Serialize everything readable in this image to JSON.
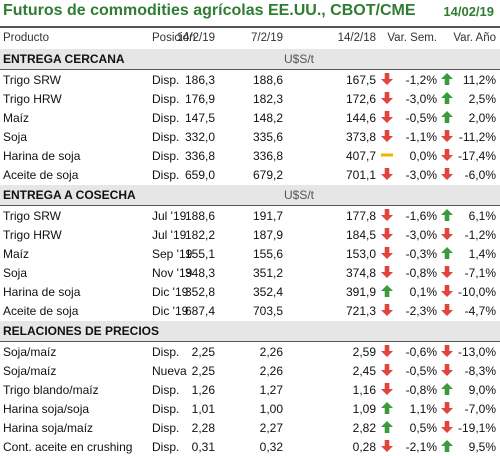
{
  "title": "Futuros de commodities agrícolas EE.UU., CBOT/CME",
  "date": "14/02/19",
  "headers": {
    "producto": "Producto",
    "posicion": "Posición",
    "d1": "14/2/19",
    "d2": "7/2/19",
    "d3": "14/2/18",
    "sem": "Var. Sem.",
    "ano": "Var. Año"
  },
  "colors": {
    "title": "#2e7d32",
    "up": "#3a9b3a",
    "down": "#e0443a",
    "flat": "#f0b400"
  },
  "sections": [
    {
      "name": "ENTREGA CERCANA",
      "unit": "U$S/t"
    },
    {
      "name": "ENTREGA A COSECHA",
      "unit": "U$S/t"
    },
    {
      "name": "RELACIONES DE PRECIOS",
      "unit": ""
    }
  ],
  "rows": [
    [
      {
        "p": "Trigo SRW",
        "pos": "Disp.",
        "v1": "186,3",
        "v2": "188,6",
        "v3": "167,5",
        "s_icon": "down-arrow-icon",
        "sem": "-1,2%",
        "a_icon": "up-arrow-icon",
        "ano": "11,2%"
      },
      {
        "p": "Trigo HRW",
        "pos": "Disp.",
        "v1": "176,9",
        "v2": "182,3",
        "v3": "172,6",
        "s_icon": "down-arrow-icon",
        "sem": "-3,0%",
        "a_icon": "up-arrow-icon",
        "ano": "2,5%"
      },
      {
        "p": "Maíz",
        "pos": "Disp.",
        "v1": "147,5",
        "v2": "148,2",
        "v3": "144,6",
        "s_icon": "down-arrow-icon",
        "sem": "-0,5%",
        "a_icon": "up-arrow-icon",
        "ano": "2,0%"
      },
      {
        "p": "Soja",
        "pos": "Disp.",
        "v1": "332,0",
        "v2": "335,6",
        "v3": "373,8",
        "s_icon": "down-arrow-icon",
        "sem": "-1,1%",
        "a_icon": "down-arrow-icon",
        "ano": "-11,2%"
      },
      {
        "p": "Harina de soja",
        "pos": "Disp.",
        "v1": "336,8",
        "v2": "336,8",
        "v3": "407,7",
        "s_icon": "flat-dash-icon",
        "sem": "0,0%",
        "a_icon": "down-arrow-icon",
        "ano": "-17,4%"
      },
      {
        "p": "Aceite de soja",
        "pos": "Disp.",
        "v1": "659,0",
        "v2": "679,2",
        "v3": "701,1",
        "s_icon": "down-arrow-icon",
        "sem": "-3,0%",
        "a_icon": "down-arrow-icon",
        "ano": "-6,0%"
      }
    ],
    [
      {
        "p": "Trigo SRW",
        "pos": "Jul '19",
        "v1": "188,6",
        "v2": "191,7",
        "v3": "177,8",
        "s_icon": "down-arrow-icon",
        "sem": "-1,6%",
        "a_icon": "up-arrow-icon",
        "ano": "6,1%"
      },
      {
        "p": "Trigo HRW",
        "pos": "Jul '19",
        "v1": "182,2",
        "v2": "187,9",
        "v3": "184,5",
        "s_icon": "down-arrow-icon",
        "sem": "-3,0%",
        "a_icon": "down-arrow-icon",
        "ano": "-1,2%"
      },
      {
        "p": "Maíz",
        "pos": "Sep '19",
        "v1": "155,1",
        "v2": "155,6",
        "v3": "153,0",
        "s_icon": "down-arrow-icon",
        "sem": "-0,3%",
        "a_icon": "up-arrow-icon",
        "ano": "1,4%"
      },
      {
        "p": "Soja",
        "pos": "Nov '19",
        "v1": "348,3",
        "v2": "351,2",
        "v3": "374,8",
        "s_icon": "down-arrow-icon",
        "sem": "-0,8%",
        "a_icon": "down-arrow-icon",
        "ano": "-7,1%"
      },
      {
        "p": "Harina de soja",
        "pos": "Dic '19",
        "v1": "352,8",
        "v2": "352,4",
        "v3": "391,9",
        "s_icon": "up-arrow-icon",
        "sem": "0,1%",
        "a_icon": "down-arrow-icon",
        "ano": "-10,0%"
      },
      {
        "p": "Aceite de soja",
        "pos": "Dic '19",
        "v1": "687,4",
        "v2": "703,5",
        "v3": "721,3",
        "s_icon": "down-arrow-icon",
        "sem": "-2,3%",
        "a_icon": "down-arrow-icon",
        "ano": "-4,7%"
      }
    ],
    [
      {
        "p": "Soja/maíz",
        "pos": "Disp.",
        "v1": "2,25",
        "v2": "2,26",
        "v3": "2,59",
        "s_icon": "down-arrow-icon",
        "sem": "-0,6%",
        "a_icon": "down-arrow-icon",
        "ano": "-13,0%"
      },
      {
        "p": "Soja/maíz",
        "pos": "Nueva",
        "v1": "2,25",
        "v2": "2,26",
        "v3": "2,45",
        "s_icon": "down-arrow-icon",
        "sem": "-0,5%",
        "a_icon": "down-arrow-icon",
        "ano": "-8,3%"
      },
      {
        "p": "Trigo blando/maíz",
        "pos": "Disp.",
        "v1": "1,26",
        "v2": "1,27",
        "v3": "1,16",
        "s_icon": "down-arrow-icon",
        "sem": "-0,8%",
        "a_icon": "up-arrow-icon",
        "ano": "9,0%"
      },
      {
        "p": "Harina soja/soja",
        "pos": "Disp.",
        "v1": "1,01",
        "v2": "1,00",
        "v3": "1,09",
        "s_icon": "up-arrow-icon",
        "sem": "1,1%",
        "a_icon": "down-arrow-icon",
        "ano": "-7,0%"
      },
      {
        "p": "Harina soja/maíz",
        "pos": "Disp.",
        "v1": "2,28",
        "v2": "2,27",
        "v3": "2,82",
        "s_icon": "up-arrow-icon",
        "sem": "0,5%",
        "a_icon": "down-arrow-icon",
        "ano": "-19,1%"
      },
      {
        "p": "Cont. aceite en crushing",
        "pos": "Disp.",
        "v1": "0,31",
        "v2": "0,32",
        "v3": "0,28",
        "s_icon": "down-arrow-icon",
        "sem": "-2,1%",
        "a_icon": "up-arrow-icon",
        "ano": "9,5%"
      }
    ]
  ]
}
